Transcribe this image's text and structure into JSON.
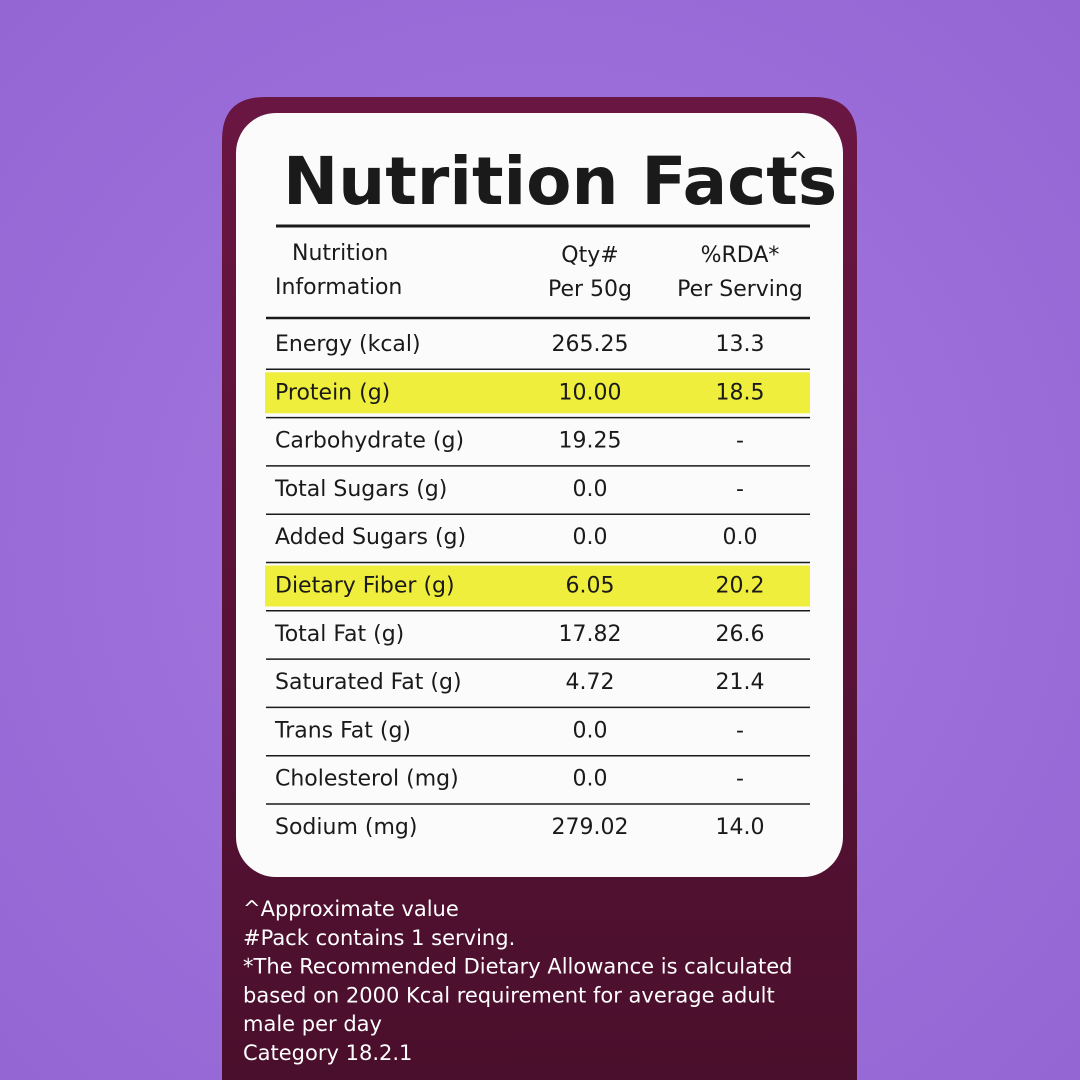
{
  "label": {
    "title": "Nutrition Facts",
    "title_mark": "^",
    "header": [
      [
        "Nutrition",
        "Information"
      ],
      [
        "Qty#",
        "Per 50g"
      ],
      [
        "%RDA*",
        "Per Serving"
      ]
    ],
    "rows": [
      {
        "cells": [
          "Energy (kcal)",
          "265.25",
          "13.3"
        ],
        "highlighted": false
      },
      {
        "cells": [
          "Protein (g)",
          "10.00",
          "18.5"
        ],
        "highlighted": true
      },
      {
        "cells": [
          "Carbohydrate (g)",
          "19.25",
          "-"
        ],
        "highlighted": false
      },
      {
        "cells": [
          "Total Sugars (g)",
          "0.0",
          "-"
        ],
        "highlighted": false
      },
      {
        "cells": [
          "Added Sugars (g)",
          "0.0",
          "0.0"
        ],
        "highlighted": false
      },
      {
        "cells": [
          "Dietary Fiber (g)",
          "6.05",
          "20.2"
        ],
        "highlighted": true
      },
      {
        "cells": [
          "Total Fat (g)",
          "17.82",
          "26.6"
        ],
        "highlighted": false
      },
      {
        "cells": [
          "Saturated Fat (g)",
          "4.72",
          "21.4"
        ],
        "highlighted": false
      },
      {
        "cells": [
          "Trans Fat (g)",
          "0.0",
          "-"
        ],
        "highlighted": false
      },
      {
        "cells": [
          "Cholesterol (mg)",
          "0.0",
          "-"
        ],
        "highlighted": false
      },
      {
        "cells": [
          "Sodium (mg)",
          "279.02",
          "14.0"
        ],
        "highlighted": false
      }
    ],
    "footnotes": [
      "^Approximate value",
      "#Pack contains 1 serving.",
      "*The Recommended Dietary Allowance is calculated",
      "based on 2000 Kcal requirement for average adult",
      "male per day",
      "Category 18.2.1"
    ]
  }
}
